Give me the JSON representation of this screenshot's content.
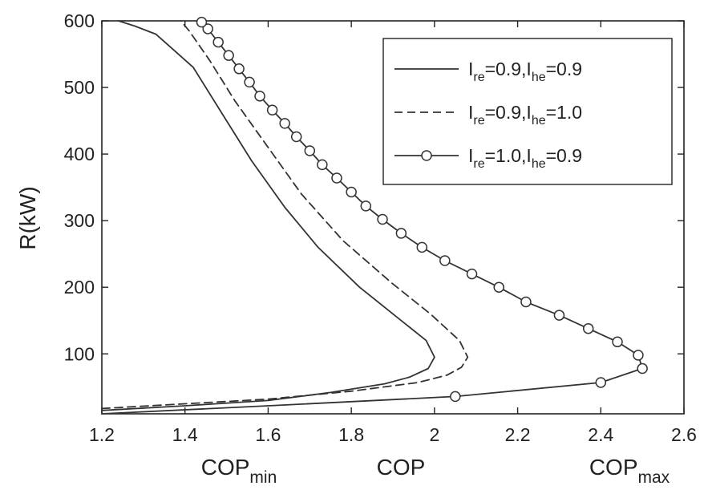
{
  "chart_data": {
    "type": "line",
    "xlim": [
      1.2,
      2.6
    ],
    "ylim": [
      10,
      600
    ],
    "xticks": [
      1.2,
      1.4,
      1.6,
      1.8,
      2.0,
      2.2,
      2.4,
      2.6
    ],
    "xtick_labels": [
      "1.2",
      "1.4",
      "1.6",
      "1.8",
      "2",
      "2.2",
      "2.4",
      "2.6"
    ],
    "yticks": [
      100,
      200,
      300,
      400,
      500,
      600
    ],
    "ytick_labels": [
      "100",
      "200",
      "300",
      "400",
      "500",
      "600"
    ],
    "ylabel": "R(kW)",
    "xlabel_parts": [
      {
        "main": "COP",
        "sub": "min"
      },
      {
        "main": "COP",
        "sub": ""
      },
      {
        "main": "COP",
        "sub": "max"
      }
    ],
    "grid": false,
    "legend_position": "top-right",
    "series": [
      {
        "legend_parts": [
          "I",
          "re",
          "=0.9,I",
          "he",
          "=0.9"
        ],
        "style": "solid",
        "marker": "none",
        "points": [
          [
            1.2,
            15
          ],
          [
            1.4,
            22
          ],
          [
            1.6,
            30
          ],
          [
            1.75,
            42
          ],
          [
            1.88,
            55
          ],
          [
            1.94,
            65
          ],
          [
            1.985,
            78
          ],
          [
            2.0,
            95
          ],
          [
            1.98,
            120
          ],
          [
            1.9,
            160
          ],
          [
            1.82,
            200
          ],
          [
            1.72,
            260
          ],
          [
            1.64,
            320
          ],
          [
            1.56,
            390
          ],
          [
            1.48,
            470
          ],
          [
            1.42,
            530
          ],
          [
            1.33,
            580
          ],
          [
            1.28,
            592
          ],
          [
            1.24,
            600
          ]
        ]
      },
      {
        "legend_parts": [
          "I",
          "re",
          "=0.9,I",
          "he",
          "=1.0"
        ],
        "style": "dashed",
        "marker": "none",
        "points": [
          [
            1.2,
            18
          ],
          [
            1.4,
            25
          ],
          [
            1.6,
            32
          ],
          [
            1.8,
            44
          ],
          [
            1.96,
            57
          ],
          [
            2.03,
            68
          ],
          [
            2.065,
            80
          ],
          [
            2.08,
            95
          ],
          [
            2.06,
            120
          ],
          [
            1.99,
            160
          ],
          [
            1.9,
            205
          ],
          [
            1.78,
            270
          ],
          [
            1.68,
            340
          ],
          [
            1.6,
            410
          ],
          [
            1.52,
            480
          ],
          [
            1.46,
            540
          ],
          [
            1.41,
            585
          ],
          [
            1.39,
            600
          ]
        ]
      },
      {
        "legend_parts": [
          "I",
          "re",
          "=1.0,I",
          "he",
          "=0.9"
        ],
        "style": "solid",
        "marker": "circle",
        "points": [
          [
            1.2,
            10
          ],
          [
            1.6,
            22
          ],
          [
            2.05,
            36
          ],
          [
            2.4,
            57
          ],
          [
            2.5,
            78
          ],
          [
            2.49,
            98
          ],
          [
            2.44,
            118
          ],
          [
            2.37,
            138
          ],
          [
            2.3,
            158
          ],
          [
            2.22,
            178
          ],
          [
            2.155,
            200
          ],
          [
            2.09,
            220
          ],
          [
            2.025,
            240
          ],
          [
            1.97,
            260
          ],
          [
            1.92,
            281
          ],
          [
            1.875,
            302
          ],
          [
            1.835,
            322
          ],
          [
            1.8,
            343
          ],
          [
            1.765,
            364
          ],
          [
            1.73,
            384
          ],
          [
            1.7,
            405
          ],
          [
            1.668,
            426
          ],
          [
            1.64,
            446
          ],
          [
            1.61,
            466
          ],
          [
            1.58,
            487
          ],
          [
            1.555,
            508
          ],
          [
            1.53,
            528
          ],
          [
            1.505,
            548
          ],
          [
            1.48,
            568
          ],
          [
            1.455,
            588
          ],
          [
            1.44,
            598
          ]
        ]
      }
    ]
  }
}
